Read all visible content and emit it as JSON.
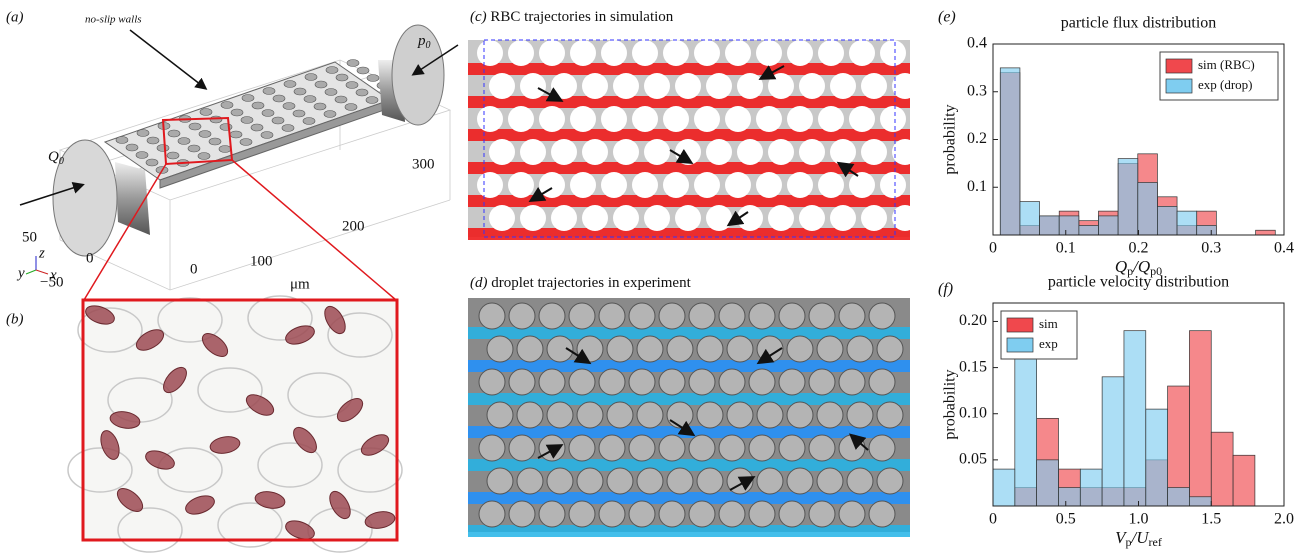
{
  "panels": {
    "a": {
      "label": "(a)",
      "annotation": "no-slip walls",
      "p0": [
        "p",
        "0"
      ],
      "q0": [
        "Q",
        "0"
      ],
      "axis_labels": [
        "300",
        "200",
        "100",
        "50",
        "0",
        "−50",
        "0",
        "μm"
      ],
      "triad": [
        "y",
        "z",
        "x"
      ]
    },
    "b": {
      "label": "(b)"
    },
    "c": {
      "label": "(c)",
      "title": "RBC trajectories in simulation"
    },
    "d": {
      "label": "(d)",
      "title": "droplet trajectories in experiment"
    }
  },
  "chart_data": [
    {
      "type": "histogram",
      "panel_label": "(e)",
      "title": "particle flux distribution",
      "xlabel": [
        "Q",
        "p",
        "/Q",
        "p0"
      ],
      "ylabel": "probability",
      "bins": [
        0.01,
        0.037,
        0.064,
        0.091,
        0.118,
        0.145,
        0.172,
        0.199,
        0.226,
        0.253,
        0.28,
        0.307,
        0.334,
        0.361,
        0.388
      ],
      "series": [
        {
          "name": "sim (RBC)",
          "color": "#f0484d",
          "values": [
            0.34,
            0.02,
            0.04,
            0.05,
            0.03,
            0.05,
            0.15,
            0.17,
            0.08,
            0.02,
            0.05,
            0,
            0,
            0.01
          ]
        },
        {
          "name": "exp (drop)",
          "color": "#7fcdf0",
          "values": [
            0.35,
            0.07,
            0.04,
            0.04,
            0.02,
            0.04,
            0.16,
            0.11,
            0.06,
            0.05,
            0.02,
            0,
            0,
            0
          ]
        }
      ],
      "xlim": [
        0,
        0.4
      ],
      "xticks": [
        0,
        0.1,
        0.2,
        0.3,
        0.4
      ],
      "ylim": [
        0,
        0.4
      ],
      "yticks": [
        0.1,
        0.2,
        0.3,
        0.4
      ],
      "legend": "upper right"
    },
    {
      "type": "histogram",
      "panel_label": "(f)",
      "title": "particle velocity distribution",
      "xlabel": [
        "V",
        "p",
        "/U",
        "ref"
      ],
      "ylabel": "probability",
      "bins": [
        0,
        0.15,
        0.3,
        0.45,
        0.6,
        0.75,
        0.9,
        1.05,
        1.2,
        1.35,
        1.5,
        1.65,
        1.8
      ],
      "series": [
        {
          "name": "sim",
          "color": "#f0484d",
          "values": [
            0,
            0.02,
            0.095,
            0.04,
            0.02,
            0.02,
            0.02,
            0.05,
            0.13,
            0.19,
            0.08,
            0.055
          ]
        },
        {
          "name": "exp",
          "color": "#7fcdf0",
          "values": [
            0.04,
            0.19,
            0.05,
            0.02,
            0.04,
            0.14,
            0.19,
            0.105,
            0.02,
            0.01,
            0,
            0
          ]
        }
      ],
      "xlim": [
        0,
        2
      ],
      "xticks": [
        0,
        0.5,
        {
          "value": 1,
          "label": "1.0"
        },
        1.5,
        {
          "value": 2,
          "label": "2.0"
        }
      ],
      "ylim": [
        0,
        0.22
      ],
      "yticks": [
        0.05,
        {
          "value": 0.1,
          "label": "0.10"
        },
        0.15,
        {
          "value": 0.2,
          "label": "0.20"
        }
      ],
      "legend": "upper left"
    }
  ]
}
